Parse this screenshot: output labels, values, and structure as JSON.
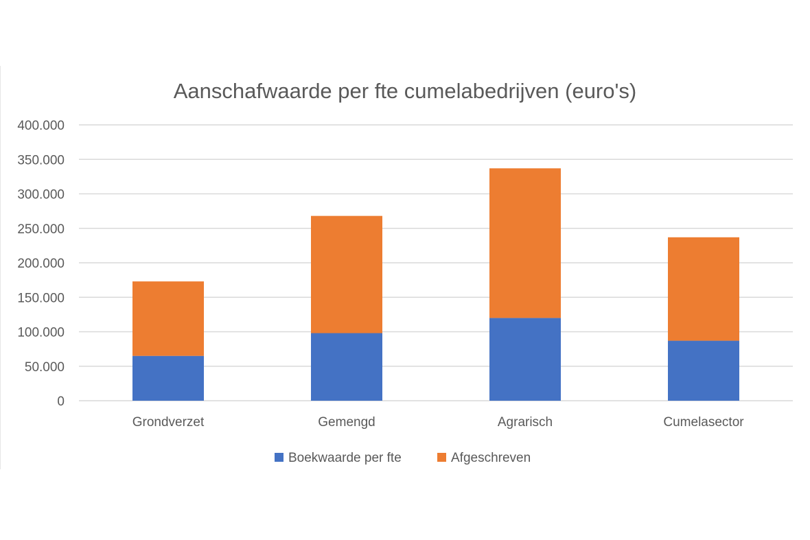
{
  "chart_data": {
    "type": "bar",
    "stacked": true,
    "title": "Aanschafwaarde per fte cumelabedrijven (euro's)",
    "xlabel": "",
    "ylabel": "",
    "categories": [
      "Grondverzet",
      "Gemengd",
      "Agrarisch",
      "Cumelasector"
    ],
    "series": [
      {
        "name": "Boekwaarde per fte",
        "values": [
          65000,
          98000,
          120000,
          87000
        ],
        "color": "#4472C4"
      },
      {
        "name": "Afgeschreven",
        "values": [
          108000,
          170000,
          217000,
          150000
        ],
        "color": "#ED7D31"
      }
    ],
    "ylim": [
      0,
      400000
    ],
    "yticks": [
      0,
      50000,
      100000,
      150000,
      200000,
      250000,
      300000,
      350000,
      400000
    ],
    "ytick_labels": [
      "0",
      "50.000",
      "100.000",
      "150.000",
      "200.000",
      "250.000",
      "300.000",
      "350.000",
      "400.000"
    ],
    "grid": true,
    "gridline_color": "#d9d9d9",
    "legend_position": "bottom"
  }
}
